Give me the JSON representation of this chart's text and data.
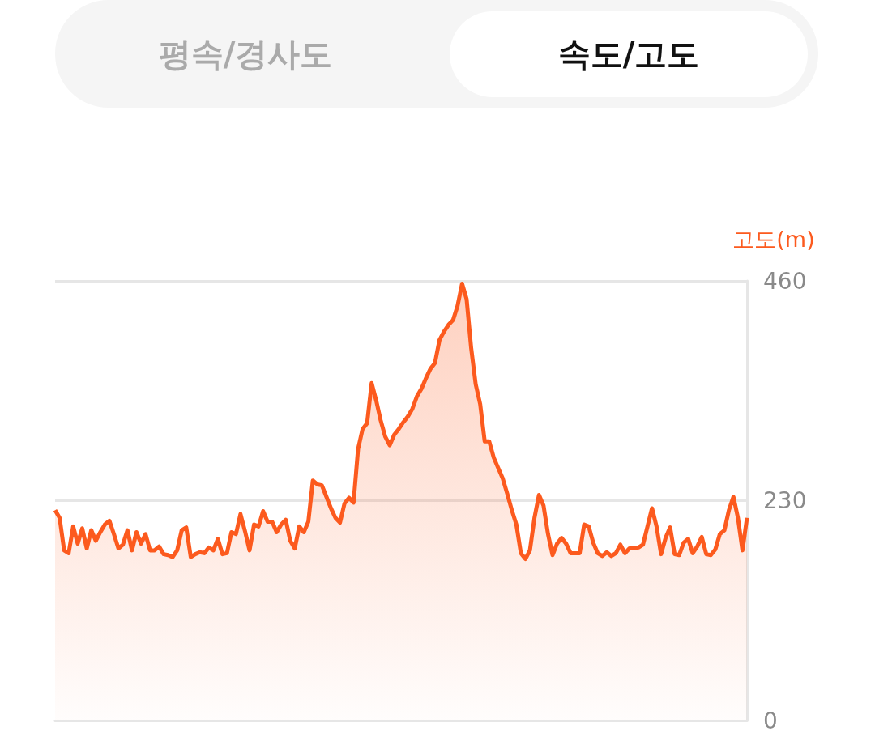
{
  "chart_data": {
    "type": "area",
    "ylabel": "고도(m)",
    "annotations": [
      "평속/경사도",
      "속도/고도"
    ],
    "categories": [
      null,
      null,
      null,
      null,
      null,
      null,
      null,
      null,
      null,
      null,
      null,
      null,
      null,
      null,
      null,
      null,
      null,
      null,
      null,
      null,
      null,
      null,
      null,
      null,
      null,
      null,
      null,
      null,
      null,
      null,
      null,
      null,
      null,
      null,
      null,
      null,
      null,
      null,
      null,
      null,
      null,
      null,
      null,
      null,
      null,
      null,
      null,
      null,
      null,
      null,
      null,
      null,
      null,
      null,
      null,
      null,
      null,
      null,
      null,
      null,
      null,
      null,
      null,
      null,
      null,
      null,
      null,
      null,
      null,
      null,
      null,
      null,
      null,
      null,
      null,
      null,
      null,
      null,
      null,
      null,
      null,
      null,
      null,
      null,
      null,
      null,
      null,
      null,
      null,
      null,
      null,
      null,
      null,
      null,
      null,
      null,
      null,
      null,
      null,
      null,
      null,
      null,
      null,
      null,
      null,
      null,
      null,
      null,
      null,
      null,
      null,
      null,
      null,
      null,
      null,
      null,
      null,
      null,
      null,
      null,
      null,
      null,
      null,
      null,
      null,
      null,
      null,
      null,
      null,
      null,
      null,
      null,
      null,
      null,
      null,
      null,
      null,
      null,
      null,
      null,
      null,
      null,
      null,
      null,
      null,
      null,
      null,
      null,
      null,
      null,
      null,
      null,
      null,
      null
    ],
    "series": [
      {
        "color": "#fc5a1e",
        "values": [
          220,
          212,
          178,
          175,
          203,
          185,
          201,
          180,
          199,
          188,
          197,
          205,
          209,
          195,
          180,
          184,
          199,
          178,
          197,
          185,
          195,
          178,
          178,
          182,
          174,
          173,
          171,
          178,
          199,
          202,
          171,
          174,
          176,
          175,
          181,
          178,
          190,
          174,
          175,
          197,
          195,
          216,
          198,
          178,
          205,
          203,
          219,
          208,
          208,
          197,
          205,
          210,
          188,
          180,
          203,
          197,
          208,
          251,
          247,
          246,
          234,
          222,
          212,
          207,
          227,
          233,
          228,
          284,
          305,
          311,
          353,
          335,
          314,
          297,
          288,
          299,
          305,
          312,
          318,
          326,
          339,
          347,
          358,
          368,
          374,
          398,
          407,
          414,
          419,
          434,
          457,
          441,
          390,
          352,
          331,
          292,
          292,
          275,
          264,
          253,
          237,
          220,
          205,
          175,
          169,
          178,
          212,
          236,
          225,
          195,
          173,
          185,
          191,
          185,
          175,
          175,
          175,
          205,
          203,
          186,
          175,
          172,
          176,
          172,
          175,
          184,
          175,
          180,
          180,
          181,
          184,
          203,
          222,
          203,
          174,
          191,
          202,
          174,
          173,
          186,
          190,
          175,
          182,
          192,
          174,
          173,
          179,
          195,
          199,
          220,
          234,
          212,
          178,
          212
        ]
      }
    ],
    "ylim": [
      0,
      460
    ],
    "yticks": [
      0,
      230,
      460
    ],
    "grid": "y"
  }
}
